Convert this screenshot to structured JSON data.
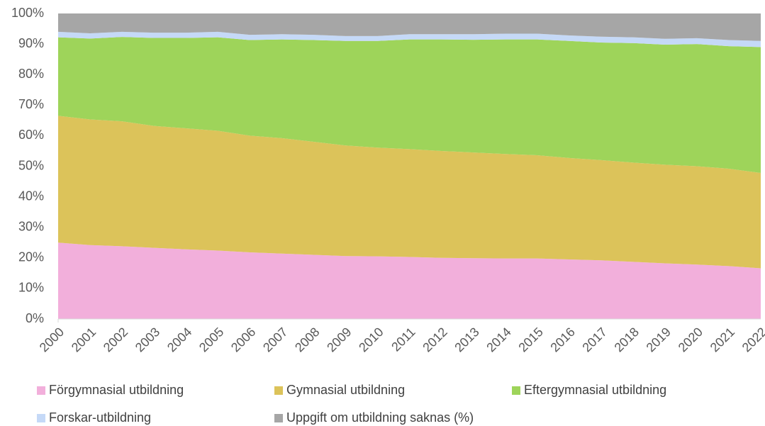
{
  "chart_data": {
    "type": "stacked_area",
    "categories": [
      "2000",
      "2001",
      "2002",
      "2003",
      "2004",
      "2005",
      "2006",
      "2007",
      "2008",
      "2009",
      "2010",
      "2011",
      "2012",
      "2013",
      "2014",
      "2015",
      "2016",
      "2017",
      "2018",
      "2019",
      "2020",
      "2021",
      "2022"
    ],
    "series": [
      {
        "name": "Förgymnasial utbildning",
        "color": "#f2afdb",
        "values": [
          25,
          24.2,
          23.8,
          23.3,
          22.8,
          22.4,
          21.8,
          21.4,
          21,
          20.6,
          20.5,
          20.3,
          20,
          19.9,
          19.8,
          19.8,
          19.5,
          19.2,
          18.7,
          18.2,
          17.8,
          17.3,
          16.6
        ]
      },
      {
        "name": "Gymnasial utbildning",
        "color": "#dcc35a",
        "values": [
          41.5,
          41.1,
          40.9,
          39.9,
          39.6,
          39.2,
          38.2,
          37.8,
          37,
          36.2,
          35.6,
          35.3,
          35,
          34.6,
          34.2,
          33.8,
          33.2,
          32.8,
          32.5,
          32.3,
          32.2,
          31.9,
          31.2
        ]
      },
      {
        "name": "Eftergymnasial utbildning",
        "color": "#9ed45a",
        "values": [
          25.7,
          26.5,
          27.6,
          28.8,
          29.6,
          30.6,
          31.3,
          32.3,
          33.3,
          34.2,
          34.9,
          35.9,
          36.5,
          36.9,
          37.5,
          37.9,
          38.3,
          38.5,
          39.1,
          39.3,
          40,
          40.1,
          41.2
        ]
      },
      {
        "name": "Forskar-utbildning",
        "color": "#c5d9f7",
        "values": [
          1.8,
          1.7,
          1.7,
          1.7,
          1.7,
          1.8,
          1.7,
          1.7,
          1.7,
          1.6,
          1.6,
          1.7,
          1.7,
          1.8,
          1.9,
          1.9,
          1.8,
          1.9,
          1.9,
          1.9,
          1.9,
          2,
          2
        ]
      },
      {
        "name": "Uppgift om utbildning saknas (%)",
        "color": "#a6a6a6",
        "values": [
          6,
          6.5,
          6,
          6.3,
          6.3,
          6,
          7,
          6.8,
          7,
          7.4,
          7.4,
          6.8,
          6.8,
          6.8,
          6.6,
          6.6,
          7.2,
          7.6,
          7.8,
          8.3,
          8.1,
          8.7,
          9
        ]
      }
    ],
    "ylim": [
      0,
      100
    ],
    "yticks": [
      {
        "value": 0,
        "label": "0%"
      },
      {
        "value": 10,
        "label": "10%"
      },
      {
        "value": 20,
        "label": "20%"
      },
      {
        "value": 30,
        "label": "30%"
      },
      {
        "value": 40,
        "label": "40%"
      },
      {
        "value": 50,
        "label": "50%"
      },
      {
        "value": 60,
        "label": "60%"
      },
      {
        "value": 70,
        "label": "70%"
      },
      {
        "value": 80,
        "label": "80%"
      },
      {
        "value": 90,
        "label": "90%"
      },
      {
        "value": 100,
        "label": "100%"
      }
    ],
    "legend": "bottom"
  }
}
